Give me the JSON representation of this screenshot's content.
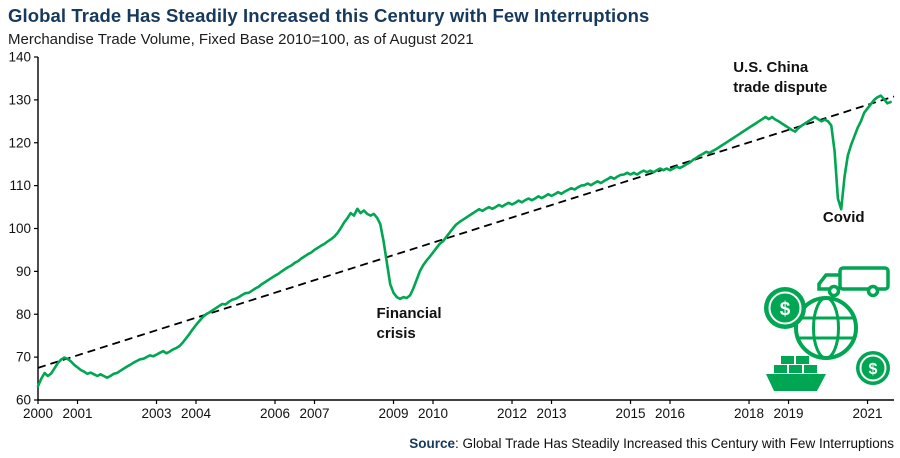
{
  "footer": {
    "source_label": "Source",
    "source_text": ": Global Trade Has Steadily Increased this Century with Few Interruptions"
  },
  "icon": {
    "currency": "$"
  },
  "colors": {
    "title_navy": "#16395e",
    "line_green": "#00a651",
    "trend_black": "#000000",
    "icon_green": "#00a651"
  },
  "chart_data": {
    "type": "line",
    "title": "Global Trade Has Steadily Increased this Century with Few Interruptions",
    "subtitle": "Merchandise Trade Volume, Fixed Base 2010=100, as of August 2021",
    "xlabel": "",
    "ylabel": "",
    "grid": false,
    "ylim": [
      60,
      140
    ],
    "xlim": [
      2000,
      2021.67
    ],
    "y_ticks": [
      60,
      70,
      80,
      90,
      100,
      110,
      120,
      130,
      140
    ],
    "x_ticks": [
      2000,
      2001,
      2003,
      2004,
      2006,
      2007,
      2009,
      2010,
      2012,
      2013,
      2015,
      2016,
      2018,
      2019,
      2021
    ],
    "series": [
      {
        "name": "Merchandise Trade Volume (Fixed Base 2010=100)",
        "x_start": 2000.0,
        "x_step": 0.083333,
        "values": [
          63.2,
          65.0,
          66.3,
          65.6,
          66.2,
          67.4,
          68.6,
          69.4,
          69.9,
          69.6,
          69.0,
          68.2,
          67.6,
          67.0,
          66.6,
          66.1,
          66.4,
          66.0,
          65.6,
          66.0,
          65.6,
          65.2,
          65.6,
          66.1,
          66.3,
          66.8,
          67.3,
          67.8,
          68.2,
          68.7,
          69.1,
          69.5,
          69.6,
          70.0,
          70.4,
          70.2,
          70.6,
          71.0,
          71.4,
          70.9,
          71.3,
          71.8,
          72.1,
          72.6,
          73.4,
          74.4,
          75.4,
          76.5,
          77.5,
          78.4,
          79.3,
          80.0,
          80.4,
          80.9,
          81.4,
          81.9,
          82.4,
          82.3,
          82.9,
          83.4,
          83.6,
          84.0,
          84.5,
          84.9,
          85.0,
          85.5,
          86.0,
          86.4,
          87.0,
          87.5,
          88.0,
          88.5,
          89.0,
          89.4,
          90.0,
          90.5,
          91.0,
          91.4,
          92.0,
          92.4,
          93.0,
          93.5,
          94.0,
          94.4,
          95.0,
          95.5,
          96.0,
          96.4,
          97.0,
          97.5,
          98.1,
          99.0,
          100.1,
          101.4,
          102.4,
          103.6,
          103.0,
          104.6,
          103.6,
          104.2,
          103.4,
          103.0,
          103.4,
          102.5,
          101.0,
          97.0,
          92.0,
          87.0,
          85.0,
          84.0,
          83.6,
          84.0,
          83.8,
          84.4,
          86.0,
          88.0,
          90.0,
          91.4,
          92.5,
          93.4,
          94.4,
          95.4,
          96.4,
          97.0,
          98.0,
          99.0,
          100.0,
          100.9,
          101.5,
          102.0,
          102.5,
          103.0,
          103.5,
          104.0,
          104.5,
          104.1,
          104.6,
          105.0,
          104.6,
          105.0,
          105.5,
          105.1,
          105.6,
          106.0,
          105.6,
          106.0,
          106.5,
          106.1,
          106.6,
          107.0,
          106.6,
          107.0,
          107.5,
          107.1,
          107.5,
          108.0,
          107.6,
          108.0,
          108.5,
          108.1,
          108.6,
          109.0,
          109.4,
          109.1,
          109.6,
          110.0,
          110.1,
          110.5,
          110.1,
          110.6,
          111.0,
          110.6,
          111.1,
          111.5,
          112.0,
          111.6,
          112.1,
          112.5,
          112.6,
          113.0,
          112.6,
          113.0,
          112.6,
          113.1,
          113.5,
          113.1,
          113.5,
          113.1,
          113.6,
          114.0,
          113.6,
          114.0,
          113.6,
          114.0,
          114.4,
          114.1,
          114.5,
          115.0,
          115.4,
          116.0,
          116.5,
          117.0,
          117.4,
          117.9,
          117.6,
          118.1,
          118.5,
          119.0,
          119.5,
          120.0,
          120.5,
          121.0,
          121.5,
          122.0,
          122.5,
          123.0,
          123.5,
          124.0,
          124.5,
          125.0,
          125.5,
          126.0,
          125.5,
          126.0,
          125.4,
          125.0,
          124.5,
          124.0,
          123.5,
          123.0,
          122.6,
          123.4,
          124.0,
          124.5,
          125.0,
          125.5,
          126.0,
          125.5,
          125.0,
          125.4,
          125.0,
          124.0,
          118.0,
          107.0,
          104.5,
          112.0,
          117.0,
          119.5,
          121.5,
          123.5,
          125.0,
          127.0,
          128.0,
          129.0,
          130.0,
          130.6,
          131.0,
          130.2,
          129.2,
          129.5
        ]
      },
      {
        "name": "Trend (dashed)",
        "style": "dashed",
        "x": [
          2000,
          2021.67
        ],
        "values": [
          67.5,
          130.8
        ]
      }
    ],
    "annotations": [
      {
        "id": "financial-crisis",
        "lines": [
          "Financial",
          "crisis"
        ],
        "x": 2008.57,
        "y": 79.1
      },
      {
        "id": "us-china-trade-dispute",
        "lines": [
          "U.S. China",
          "trade dispute"
        ],
        "x": 2017.6,
        "y": 136.5
      },
      {
        "id": "covid",
        "lines": [
          "Covid"
        ],
        "x": 2019.87,
        "y": 101.5
      }
    ]
  }
}
